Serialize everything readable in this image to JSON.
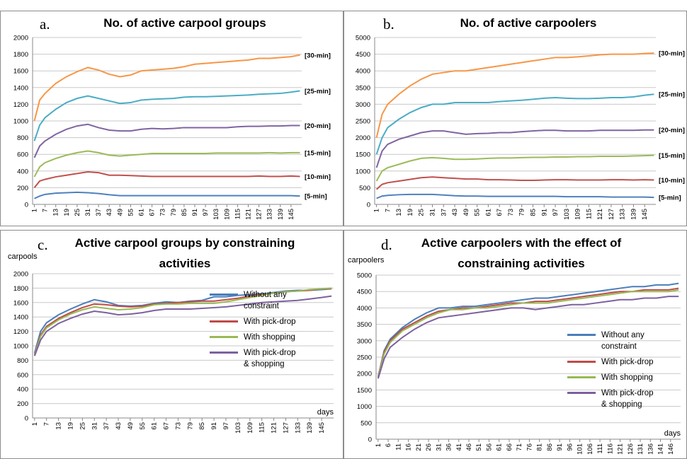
{
  "chart_data": [
    {
      "type": "line",
      "panel_label": "a.",
      "title": "No. of active carpool groups",
      "x": [
        1,
        4,
        7,
        13,
        19,
        25,
        31,
        37,
        43,
        49,
        55,
        61,
        67,
        73,
        79,
        85,
        91,
        97,
        103,
        109,
        115,
        121,
        127,
        133,
        139,
        145,
        150
      ],
      "xlim": [
        0,
        151
      ],
      "xticks": [
        1,
        7,
        13,
        19,
        25,
        31,
        37,
        43,
        49,
        55,
        61,
        67,
        73,
        79,
        85,
        91,
        97,
        103,
        109,
        115,
        121,
        127,
        133,
        139,
        145
      ],
      "ylim": [
        0,
        2000
      ],
      "yticks": [
        0,
        200,
        400,
        600,
        800,
        1000,
        1200,
        1400,
        1600,
        1800,
        2000
      ],
      "grid": true,
      "legend": "line-end",
      "series": [
        {
          "name": "[5-min]",
          "color": "#4f81bd",
          "values": [
            70,
            100,
            120,
            135,
            140,
            145,
            140,
            130,
            115,
            105,
            105,
            105,
            105,
            105,
            105,
            105,
            105,
            105,
            105,
            105,
            105,
            105,
            105,
            105,
            105,
            105,
            100
          ]
        },
        {
          "name": "[10-min]",
          "color": "#c0504d",
          "values": [
            200,
            280,
            300,
            330,
            350,
            370,
            390,
            380,
            350,
            350,
            345,
            340,
            335,
            335,
            335,
            335,
            335,
            335,
            335,
            335,
            335,
            335,
            340,
            335,
            335,
            340,
            335
          ]
        },
        {
          "name": "[15-min]",
          "color": "#9bbb59",
          "values": [
            330,
            450,
            500,
            550,
            590,
            620,
            640,
            620,
            590,
            580,
            590,
            600,
            610,
            610,
            610,
            610,
            610,
            610,
            615,
            615,
            615,
            615,
            615,
            620,
            615,
            620,
            620
          ]
        },
        {
          "name": "[20-min]",
          "color": "#8064a2",
          "values": [
            560,
            700,
            760,
            840,
            900,
            940,
            960,
            920,
            890,
            880,
            880,
            900,
            910,
            905,
            910,
            920,
            920,
            920,
            920,
            920,
            930,
            935,
            935,
            940,
            940,
            945,
            945
          ]
        },
        {
          "name": "[25-min]",
          "color": "#4bacc6",
          "values": [
            760,
            950,
            1040,
            1140,
            1220,
            1270,
            1300,
            1270,
            1240,
            1210,
            1220,
            1250,
            1260,
            1265,
            1270,
            1285,
            1290,
            1290,
            1295,
            1300,
            1305,
            1310,
            1320,
            1325,
            1330,
            1345,
            1360
          ]
        },
        {
          "name": "[30-min]",
          "color": "#f79646",
          "values": [
            1000,
            1250,
            1330,
            1450,
            1530,
            1590,
            1640,
            1610,
            1560,
            1530,
            1550,
            1600,
            1610,
            1620,
            1630,
            1650,
            1680,
            1690,
            1700,
            1710,
            1720,
            1730,
            1750,
            1750,
            1760,
            1770,
            1790
          ]
        }
      ]
    },
    {
      "type": "line",
      "panel_label": "b.",
      "title": "No. of active carpoolers",
      "x": [
        1,
        4,
        7,
        13,
        19,
        25,
        31,
        37,
        43,
        49,
        55,
        61,
        67,
        73,
        79,
        85,
        91,
        97,
        103,
        109,
        115,
        121,
        127,
        133,
        139,
        145,
        150
      ],
      "xlim": [
        0,
        151
      ],
      "xticks": [
        1,
        7,
        13,
        19,
        25,
        31,
        37,
        43,
        49,
        55,
        61,
        67,
        73,
        79,
        85,
        91,
        97,
        103,
        109,
        115,
        121,
        127,
        133,
        139,
        145
      ],
      "ylim": [
        0,
        5000
      ],
      "yticks": [
        0,
        500,
        1000,
        1500,
        2000,
        2500,
        3000,
        3500,
        4000,
        4500,
        5000
      ],
      "grid": true,
      "legend": "line-end",
      "series": [
        {
          "name": "[5-min]",
          "color": "#4f81bd",
          "values": [
            180,
            250,
            270,
            290,
            300,
            300,
            300,
            280,
            260,
            250,
            250,
            240,
            240,
            240,
            240,
            240,
            240,
            240,
            230,
            230,
            230,
            230,
            220,
            220,
            220,
            220,
            210
          ]
        },
        {
          "name": "[10-min]",
          "color": "#c0504d",
          "values": [
            450,
            600,
            650,
            700,
            750,
            800,
            820,
            800,
            780,
            760,
            760,
            740,
            740,
            730,
            720,
            720,
            730,
            740,
            740,
            730,
            730,
            730,
            740,
            740,
            730,
            740,
            730
          ]
        },
        {
          "name": "[15-min]",
          "color": "#9bbb59",
          "values": [
            700,
            1000,
            1100,
            1200,
            1300,
            1380,
            1400,
            1380,
            1350,
            1350,
            1360,
            1380,
            1390,
            1390,
            1400,
            1410,
            1410,
            1420,
            1420,
            1430,
            1430,
            1440,
            1440,
            1440,
            1450,
            1460,
            1470
          ]
        },
        {
          "name": "[20-min]",
          "color": "#8064a2",
          "values": [
            1100,
            1600,
            1800,
            1950,
            2050,
            2150,
            2200,
            2200,
            2150,
            2100,
            2120,
            2130,
            2150,
            2150,
            2180,
            2200,
            2220,
            2220,
            2200,
            2200,
            2200,
            2220,
            2220,
            2220,
            2220,
            2230,
            2230
          ]
        },
        {
          "name": "[25-min]",
          "color": "#4bacc6",
          "values": [
            1500,
            2000,
            2300,
            2550,
            2750,
            2900,
            3000,
            3000,
            3050,
            3050,
            3050,
            3050,
            3080,
            3100,
            3120,
            3150,
            3180,
            3200,
            3180,
            3170,
            3170,
            3180,
            3200,
            3200,
            3220,
            3270,
            3300
          ]
        },
        {
          "name": "[30-min]",
          "color": "#f79646",
          "values": [
            2000,
            2700,
            3000,
            3300,
            3550,
            3750,
            3900,
            3950,
            4000,
            4000,
            4050,
            4100,
            4150,
            4200,
            4250,
            4300,
            4350,
            4400,
            4400,
            4420,
            4450,
            4480,
            4500,
            4500,
            4500,
            4520,
            4530
          ]
        }
      ]
    },
    {
      "type": "line",
      "panel_label": "c.",
      "title": "Active carpool groups by constraining activities",
      "ylabel": "carpools",
      "xlabel": "days",
      "x": [
        1,
        4,
        7,
        13,
        19,
        25,
        31,
        37,
        43,
        49,
        55,
        61,
        67,
        73,
        79,
        85,
        91,
        97,
        103,
        109,
        115,
        121,
        127,
        133,
        139,
        145,
        150
      ],
      "xlim": [
        0,
        151
      ],
      "xticks": [
        1,
        7,
        13,
        19,
        25,
        31,
        37,
        43,
        49,
        55,
        61,
        67,
        73,
        79,
        85,
        91,
        97,
        103,
        109,
        115,
        121,
        127,
        133,
        139,
        145
      ],
      "ylim": [
        0,
        2000
      ],
      "yticks": [
        0,
        200,
        400,
        600,
        800,
        1000,
        1200,
        1400,
        1600,
        1800,
        2000
      ],
      "grid": true,
      "legend": "center-right",
      "series": [
        {
          "name": "Without any constraint",
          "color": "#4a7ebb",
          "values": [
            900,
            1200,
            1320,
            1430,
            1510,
            1580,
            1640,
            1610,
            1560,
            1550,
            1560,
            1590,
            1610,
            1600,
            1620,
            1630,
            1680,
            1680,
            1700,
            1710,
            1720,
            1740,
            1760,
            1770,
            1770,
            1780,
            1790
          ]
        },
        {
          "name": "With pick-drop",
          "color": "#be4b48",
          "values": [
            880,
            1150,
            1270,
            1380,
            1460,
            1530,
            1580,
            1570,
            1550,
            1540,
            1550,
            1580,
            1590,
            1600,
            1610,
            1620,
            1620,
            1640,
            1660,
            1690,
            1710,
            1730,
            1750,
            1760,
            1770,
            1790,
            1790
          ]
        },
        {
          "name": "With shopping",
          "color": "#98b954",
          "values": [
            870,
            1130,
            1250,
            1360,
            1440,
            1500,
            1540,
            1520,
            1500,
            1510,
            1530,
            1570,
            1580,
            1580,
            1590,
            1590,
            1590,
            1610,
            1640,
            1670,
            1700,
            1730,
            1750,
            1760,
            1780,
            1790,
            1800
          ]
        },
        {
          "name": "With pick-drop & shopping",
          "color": "#7d60a0",
          "values": [
            860,
            1080,
            1200,
            1310,
            1380,
            1440,
            1480,
            1460,
            1430,
            1440,
            1460,
            1490,
            1510,
            1510,
            1510,
            1520,
            1530,
            1540,
            1560,
            1580,
            1600,
            1610,
            1620,
            1630,
            1650,
            1670,
            1690
          ]
        }
      ]
    },
    {
      "type": "line",
      "panel_label": "d.",
      "title": "Active carpoolers with the effect of constraining activities",
      "ylabel": "carpoolers",
      "xlabel": "days",
      "x": [
        1,
        4,
        7,
        13,
        19,
        25,
        31,
        37,
        43,
        49,
        55,
        61,
        67,
        73,
        79,
        85,
        91,
        97,
        103,
        109,
        115,
        121,
        127,
        133,
        139,
        145,
        150
      ],
      "xlim": [
        0,
        151
      ],
      "xticks": [
        1,
        6,
        11,
        16,
        21,
        26,
        31,
        36,
        41,
        46,
        51,
        56,
        61,
        66,
        71,
        76,
        81,
        86,
        91,
        96,
        101,
        106,
        111,
        116,
        121,
        126,
        131,
        136,
        141,
        146
      ],
      "ylim": [
        0,
        5000
      ],
      "yticks": [
        0,
        500,
        1000,
        1500,
        2000,
        2500,
        3000,
        3500,
        4000,
        4500,
        5000
      ],
      "grid": true,
      "legend": "center-right",
      "series": [
        {
          "name": "Without any constraint",
          "color": "#4a7ebb",
          "values": [
            1900,
            2700,
            3050,
            3400,
            3650,
            3850,
            4000,
            4000,
            4050,
            4050,
            4100,
            4150,
            4200,
            4250,
            4300,
            4300,
            4350,
            4400,
            4450,
            4500,
            4550,
            4600,
            4650,
            4650,
            4700,
            4700,
            4750
          ]
        },
        {
          "name": "With pick-drop",
          "color": "#be4b48",
          "values": [
            1900,
            2650,
            3000,
            3350,
            3550,
            3750,
            3900,
            3950,
            4000,
            4000,
            4050,
            4100,
            4150,
            4150,
            4200,
            4200,
            4250,
            4300,
            4350,
            4400,
            4450,
            4500,
            4500,
            4550,
            4550,
            4550,
            4600
          ]
        },
        {
          "name": "With shopping",
          "color": "#98b954",
          "values": [
            1880,
            2600,
            2950,
            3300,
            3500,
            3700,
            3850,
            3950,
            3950,
            4000,
            4000,
            4050,
            4100,
            4150,
            4150,
            4150,
            4200,
            4250,
            4300,
            4350,
            4400,
            4450,
            4500,
            4500,
            4500,
            4500,
            4550
          ]
        },
        {
          "name": "With pick-drop & shopping",
          "color": "#7d60a0",
          "values": [
            1850,
            2450,
            2800,
            3100,
            3350,
            3550,
            3700,
            3750,
            3800,
            3850,
            3900,
            3950,
            4000,
            4000,
            3950,
            4000,
            4050,
            4100,
            4100,
            4150,
            4200,
            4250,
            4250,
            4300,
            4300,
            4350,
            4350
          ]
        }
      ]
    }
  ]
}
